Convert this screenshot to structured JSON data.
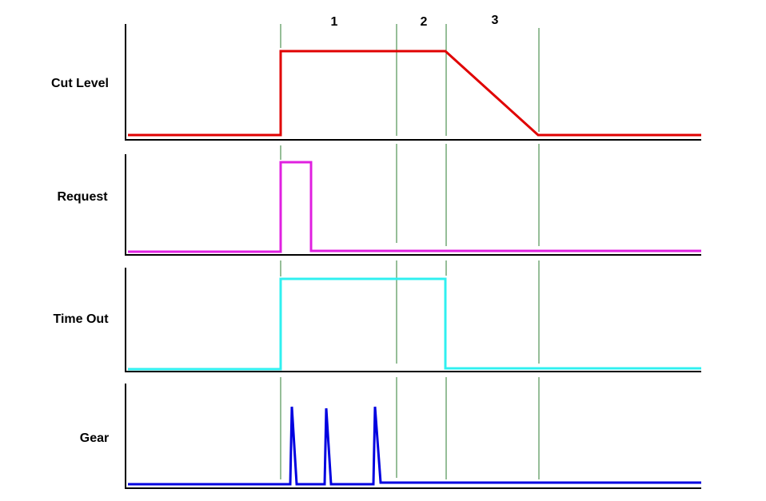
{
  "signals": [
    {
      "label": "Cut Level"
    },
    {
      "label": "Request"
    },
    {
      "label": "Time Out"
    },
    {
      "label": "Gear"
    }
  ],
  "phases": [
    "1",
    "2",
    "3"
  ]
}
